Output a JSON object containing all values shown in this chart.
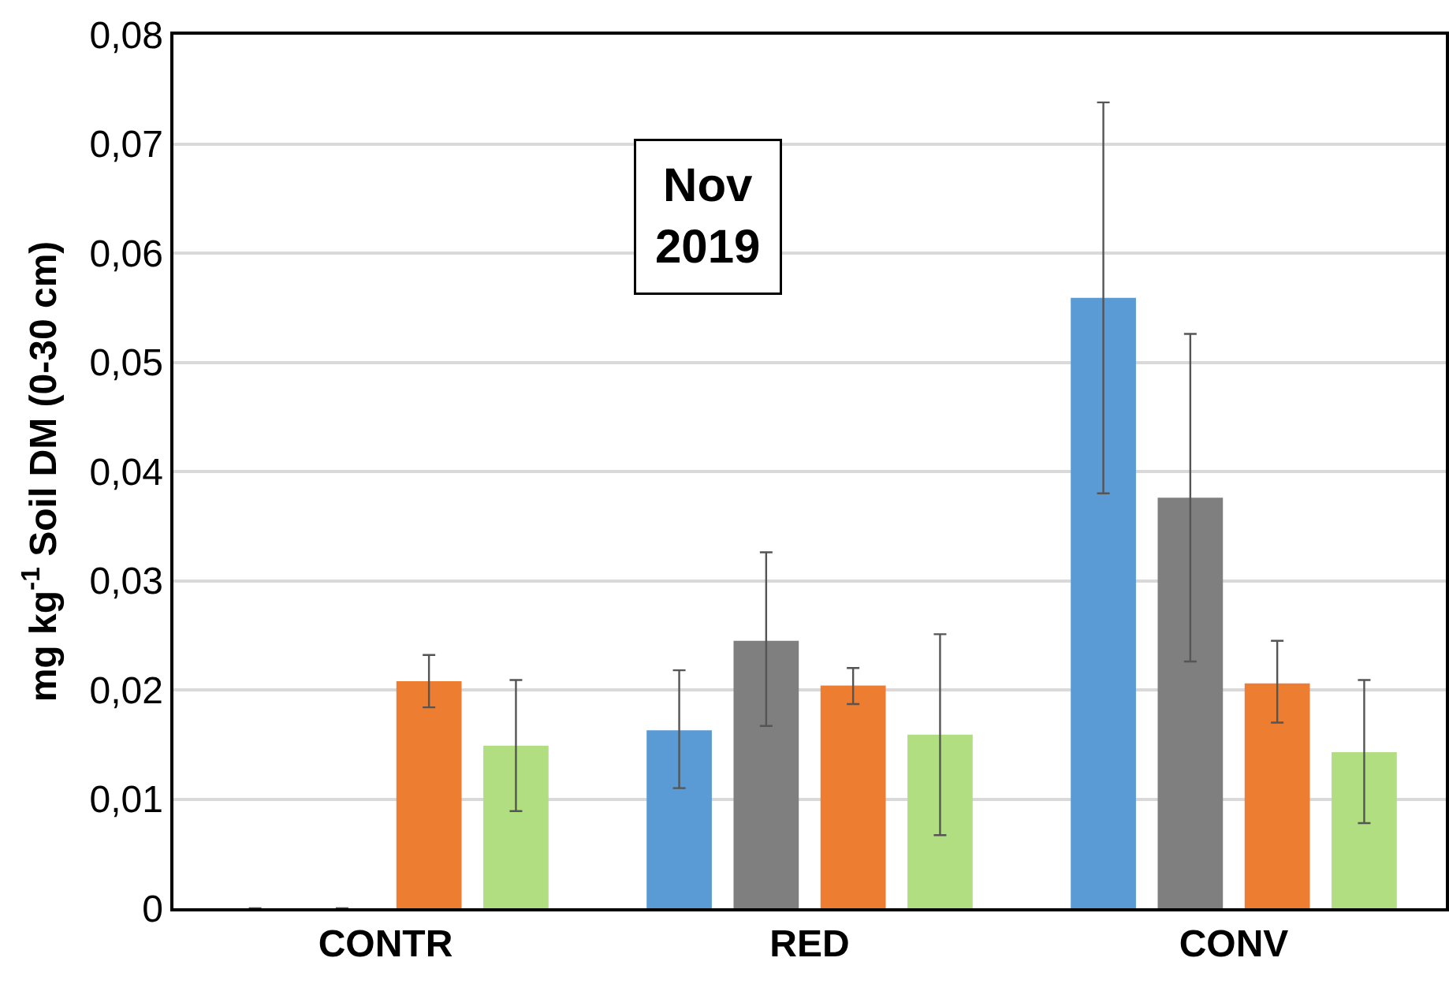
{
  "chart_data": {
    "type": "bar",
    "ylabel": "mg kg$^{-1}$ Soil DM (0-30 cm)",
    "categories": [
      "CONTR",
      "RED",
      "CONV"
    ],
    "series": [
      {
        "color": "#5b9bd5",
        "values": [
          0,
          0.0163,
          0.0559
        ],
        "errors": [
          null,
          [
            0.011,
            0.0218
          ],
          [
            0.038,
            0.0738
          ]
        ]
      },
      {
        "color": "#7f7f7f",
        "values": [
          0,
          0.0245,
          0.0376
        ],
        "errors": [
          null,
          [
            0.0167,
            0.0326
          ],
          [
            0.0226,
            0.0526
          ]
        ]
      },
      {
        "color": "#ed7d31",
        "values": [
          0.0208,
          0.0204,
          0.0206
        ],
        "errors": [
          [
            0.0184,
            0.0232
          ],
          [
            0.0187,
            0.022
          ],
          [
            0.017,
            0.0245
          ]
        ]
      },
      {
        "color": "#b0de80",
        "values": [
          0.0149,
          0.0159,
          0.0143
        ],
        "errors": [
          [
            0.0089,
            0.0209
          ],
          [
            0.0067,
            0.0251
          ],
          [
            0.0078,
            0.0209
          ]
        ]
      }
    ],
    "annotations": [
      "Nov\n2019"
    ],
    "ylim": [
      0,
      0.08
    ],
    "yticks": [
      {
        "value": 0,
        "label": "0"
      },
      {
        "value": 0.01,
        "label": "0,01"
      },
      {
        "value": 0.02,
        "label": "0,02"
      },
      {
        "value": 0.03,
        "label": "0,03"
      },
      {
        "value": 0.04,
        "label": "0,04"
      },
      {
        "value": 0.05,
        "label": "0,05"
      },
      {
        "value": 0.06,
        "label": "0,06"
      },
      {
        "value": 0.07,
        "label": "0,07"
      },
      {
        "value": 0.08,
        "label": "0,08"
      }
    ],
    "grid": "y"
  }
}
